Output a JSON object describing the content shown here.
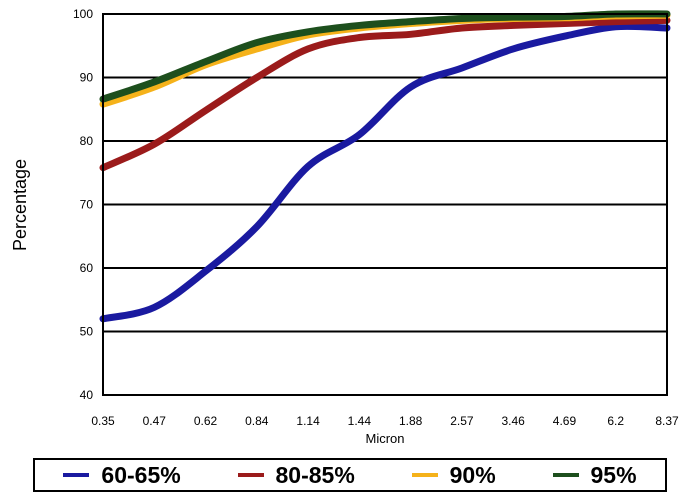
{
  "chart_data": {
    "type": "line",
    "title": "",
    "xlabel": "Micron",
    "ylabel": "Percentage",
    "categories": [
      "0.35",
      "0.47",
      "0.62",
      "0.84",
      "1.14",
      "1.44",
      "1.88",
      "2.57",
      "3.46",
      "4.69",
      "6.2",
      "8.37"
    ],
    "yticks": [
      "100",
      "90",
      "80",
      "70",
      "60",
      "50",
      "40"
    ],
    "ylim": [
      40,
      100
    ],
    "grid": "horizontal",
    "legend_position": "bottom",
    "series": [
      {
        "name": "60-65%",
        "color": "#1a1aa0",
        "values": [
          52,
          53.8,
          59.5,
          66.5,
          76,
          81,
          88.5,
          91.5,
          94.5,
          96.5,
          98,
          97.8
        ]
      },
      {
        "name": "80-85%",
        "color": "#9b1b1b",
        "values": [
          75.8,
          79.5,
          84.8,
          90,
          94.5,
          96.3,
          96.8,
          97.8,
          98.2,
          98.5,
          98.8,
          99
        ]
      },
      {
        "name": "90%",
        "color": "#f5b21a",
        "values": [
          85.8,
          88.5,
          92,
          94.5,
          96.7,
          97.8,
          98.5,
          99,
          99.3,
          99.4,
          99.7,
          99.8
        ]
      },
      {
        "name": "95%",
        "color": "#1d4f1d",
        "values": [
          86.6,
          89.3,
          92.5,
          95.5,
          97.2,
          98.2,
          98.8,
          99.3,
          99.5,
          99.6,
          100,
          100
        ]
      }
    ]
  }
}
